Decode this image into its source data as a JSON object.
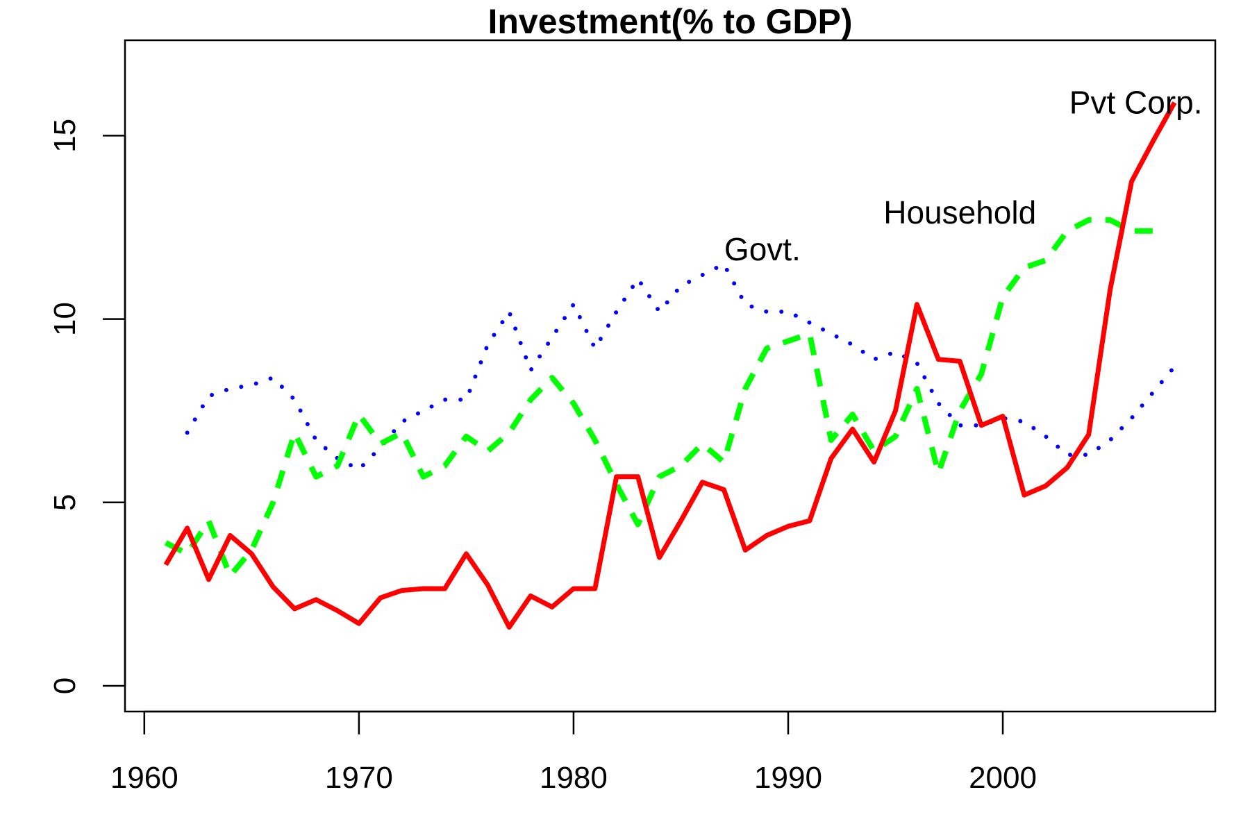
{
  "chart_data": {
    "type": "line",
    "title": "Investment(% to GDP)",
    "xlabel": "",
    "ylabel": "",
    "xlim": [
      1959.1,
      2009.9
    ],
    "ylim": [
      -0.7,
      17.6
    ],
    "x_ticks": [
      1960,
      1970,
      1980,
      1990,
      2000
    ],
    "y_ticks": [
      0,
      5,
      10,
      15
    ],
    "grid": false,
    "legend": "none",
    "x": [
      1961,
      1962,
      1963,
      1964,
      1965,
      1966,
      1967,
      1968,
      1969,
      1970,
      1971,
      1972,
      1973,
      1974,
      1975,
      1976,
      1977,
      1978,
      1979,
      1980,
      1981,
      1982,
      1983,
      1984,
      1985,
      1986,
      1987,
      1988,
      1989,
      1990,
      1991,
      1992,
      1993,
      1994,
      1995,
      1996,
      1997,
      1998,
      1999,
      2000,
      2001,
      2002,
      2003,
      2004,
      2005,
      2006,
      2007,
      2008
    ],
    "series": [
      {
        "name": "Pvt Corp.",
        "color": "#ff0000",
        "style": "solid",
        "values": [
          3.3,
          4.3,
          2.9,
          4.1,
          3.6,
          2.7,
          2.1,
          2.35,
          2.05,
          1.7,
          2.4,
          2.6,
          2.65,
          2.65,
          3.6,
          2.75,
          1.6,
          2.45,
          2.15,
          2.65,
          2.65,
          5.7,
          5.7,
          3.5,
          4.5,
          5.55,
          5.35,
          3.7,
          4.1,
          4.35,
          4.5,
          6.2,
          7.0,
          6.1,
          7.5,
          10.4,
          8.9,
          8.85,
          7.1,
          7.35,
          5.2,
          5.45,
          5.95,
          6.85,
          10.8,
          13.75,
          14.85,
          15.9
        ]
      },
      {
        "name": "Household",
        "color": "#00ff00",
        "style": "dashed",
        "values": [
          3.9,
          3.6,
          4.5,
          3.0,
          3.7,
          5.0,
          6.9,
          5.7,
          6.0,
          7.4,
          6.6,
          6.9,
          5.7,
          6.0,
          6.8,
          6.4,
          6.9,
          7.8,
          8.4,
          7.7,
          6.7,
          5.5,
          4.4,
          5.7,
          6.0,
          6.6,
          6.1,
          8.1,
          9.2,
          9.4,
          9.6,
          6.7,
          7.4,
          6.4,
          6.8,
          8.1,
          5.8,
          7.5,
          8.5,
          10.6,
          11.4,
          11.6,
          12.4,
          12.7,
          12.7,
          12.4,
          12.4,
          null
        ]
      },
      {
        "name": "Govt.",
        "color": "#0000ff",
        "style": "dotted",
        "values": [
          null,
          6.9,
          7.9,
          8.1,
          8.2,
          8.4,
          7.8,
          6.7,
          6.2,
          5.9,
          6.5,
          7.2,
          7.5,
          7.8,
          7.8,
          9.3,
          10.2,
          8.6,
          9.5,
          10.4,
          9.2,
          10.2,
          11.1,
          10.2,
          10.9,
          11.2,
          11.5,
          10.4,
          10.2,
          10.2,
          9.9,
          9.6,
          9.3,
          8.9,
          9.1,
          8.8,
          7.7,
          7.1,
          7.1,
          7.3,
          7.2,
          6.8,
          6.3,
          6.3,
          6.7,
          7.3,
          8.0,
          8.7
        ]
      }
    ],
    "annotations": [
      {
        "text": "Pvt Corp.",
        "x": 2006.2,
        "y": 15.6
      },
      {
        "text": "Household",
        "x": 1998.0,
        "y": 12.6
      },
      {
        "text": "Govt.",
        "x": 1988.8,
        "y": 11.6
      }
    ]
  }
}
